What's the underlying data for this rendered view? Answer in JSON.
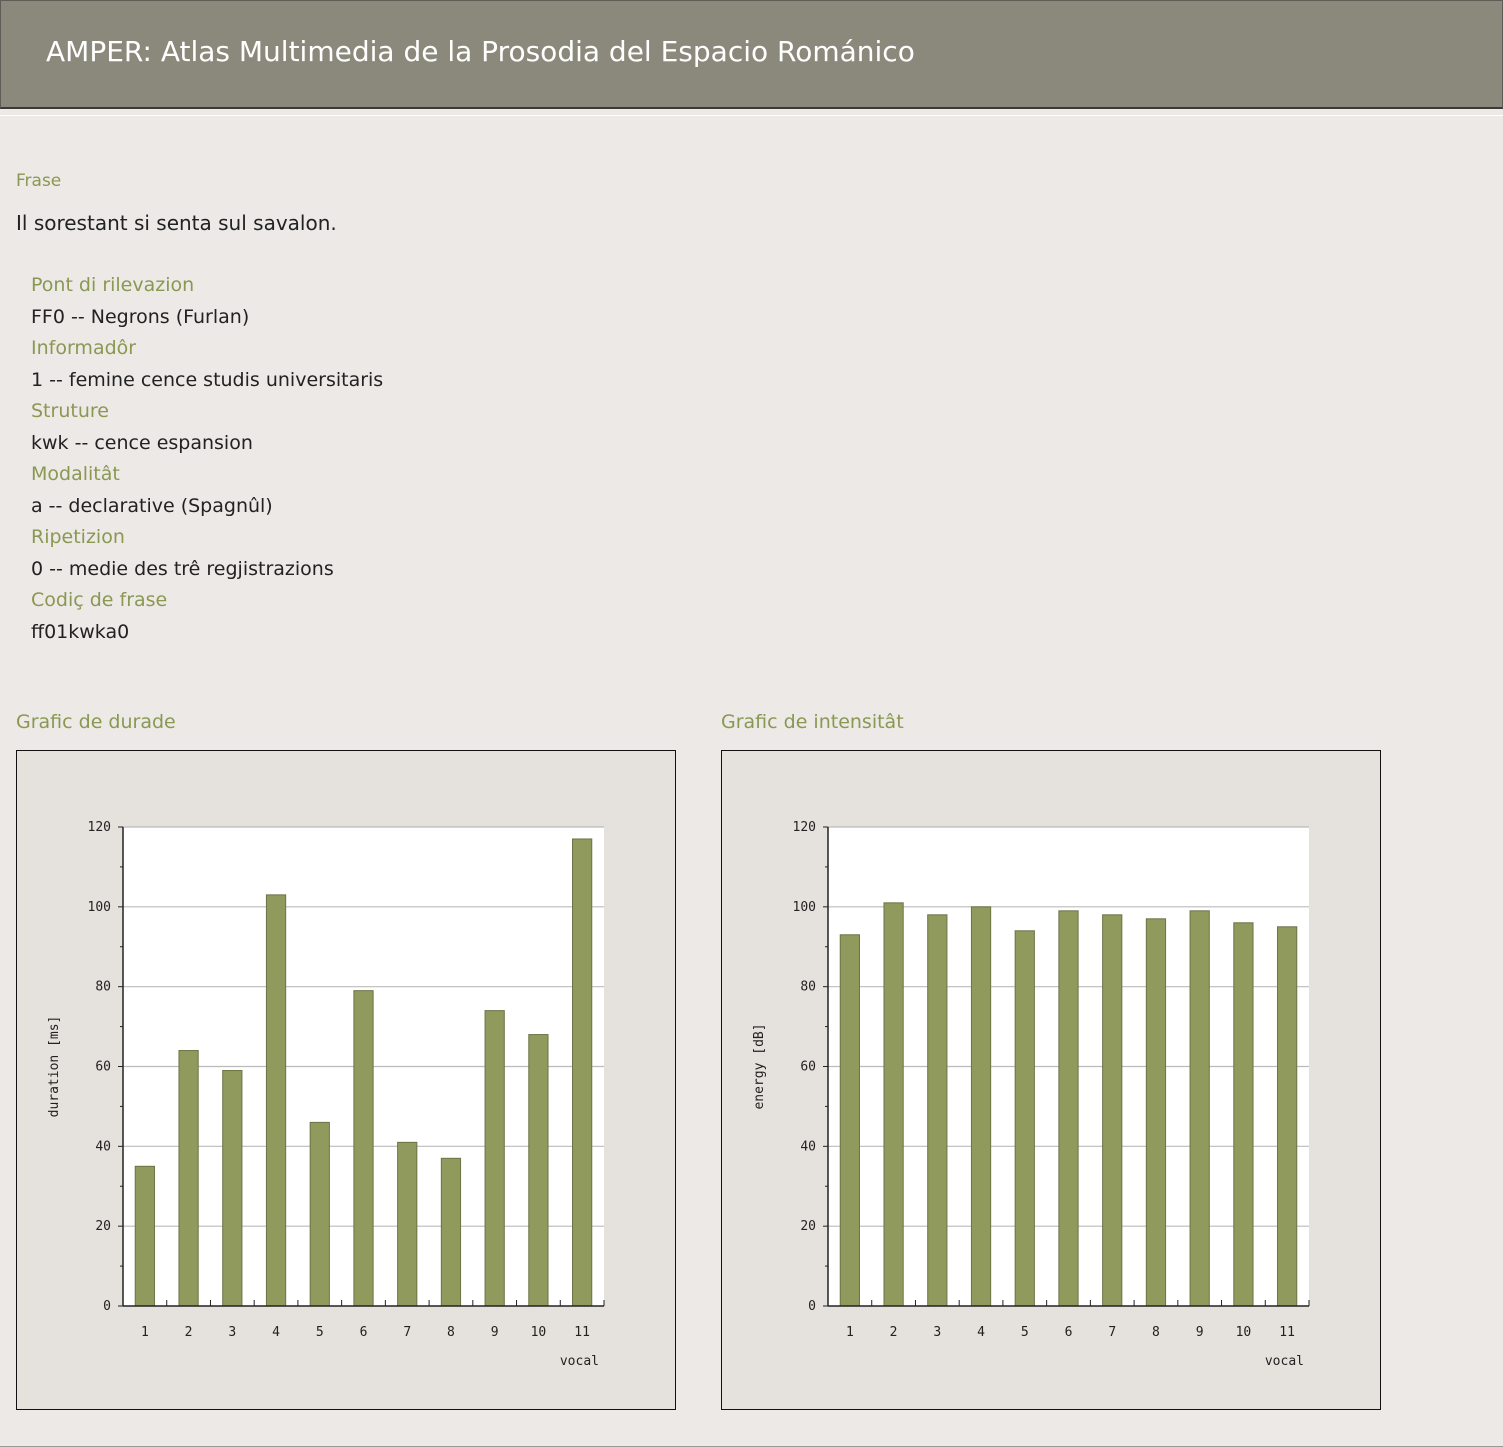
{
  "header": {
    "title": "AMPER: Atlas Multimedia de la Prosodia del Espacio Románico"
  },
  "frase": {
    "label": "Frase",
    "value": "Il sorestant si senta sul savalon."
  },
  "fields": [
    {
      "label": "Pont di rilevazion",
      "value": "FF0 -- Negrons (Furlan)"
    },
    {
      "label": "Informadôr",
      "value": "1 -- femine cence studis universitaris"
    },
    {
      "label": "Struture",
      "value": "kwk -- cence espansion"
    },
    {
      "label": "Modalitât",
      "value": "a -- declarative (Spagnûl)"
    },
    {
      "label": "Ripetizion",
      "value": "0 -- medie des trê regjistrazions"
    },
    {
      "label": "Codiç de frase",
      "value": "ff01kwka0"
    }
  ],
  "charts": {
    "duration_title": "Grafic de durade",
    "energy_title": "Grafic de intensitât"
  },
  "chart_data": [
    {
      "type": "bar",
      "title": "",
      "xlabel": "vocal",
      "ylabel": "duration [ms]",
      "categories": [
        "1",
        "2",
        "3",
        "4",
        "5",
        "6",
        "7",
        "8",
        "9",
        "10",
        "11"
      ],
      "values": [
        35,
        64,
        59,
        103,
        46,
        79,
        41,
        37,
        74,
        68,
        117
      ],
      "ylim": [
        0,
        120
      ],
      "yticks": [
        "0",
        "20",
        "40",
        "60",
        "80",
        "100",
        "120"
      ],
      "grid": true,
      "bar_color": "#8f9a5c"
    },
    {
      "type": "bar",
      "title": "",
      "xlabel": "vocal",
      "ylabel": "energy [dB]",
      "categories": [
        "1",
        "2",
        "3",
        "4",
        "5",
        "6",
        "7",
        "8",
        "9",
        "10",
        "11"
      ],
      "values": [
        93,
        101,
        98,
        100,
        94,
        99,
        98,
        97,
        99,
        96,
        95
      ],
      "ylim": [
        0,
        120
      ],
      "yticks": [
        "0",
        "20",
        "40",
        "60",
        "80",
        "100",
        "120"
      ],
      "grid": true,
      "bar_color": "#8f9a5c"
    }
  ]
}
